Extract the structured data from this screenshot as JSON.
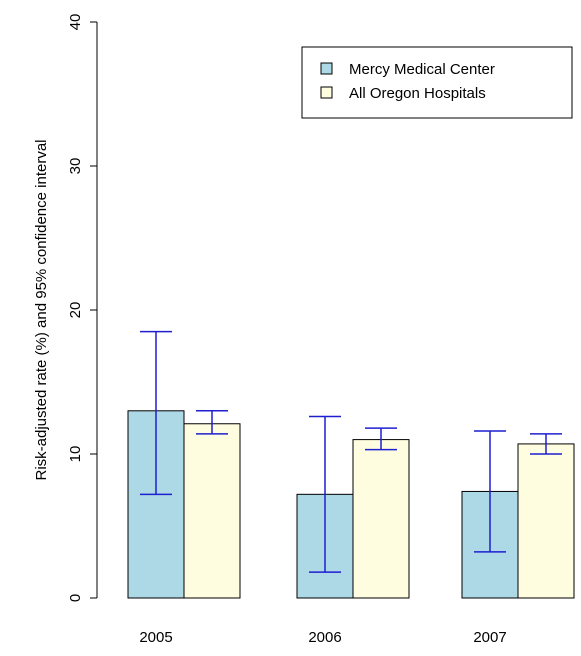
{
  "chart_data": {
    "type": "bar",
    "title": "",
    "xlabel": "",
    "ylabel": "Risk-adjusted rate (%) and 95% confidence interval",
    "ylim": [
      0,
      40
    ],
    "yticks": [
      0,
      10,
      20,
      30,
      40
    ],
    "categories": [
      "2005",
      "2006",
      "2007"
    ],
    "series": [
      {
        "name": "Mercy Medical Center",
        "color": "#add8e6",
        "values": [
          13.0,
          7.2,
          7.4
        ],
        "ci_lower": [
          7.2,
          1.8,
          3.2
        ],
        "ci_upper": [
          18.5,
          12.6,
          11.6
        ]
      },
      {
        "name": "All Oregon Hospitals",
        "color": "#fffde0",
        "values": [
          12.1,
          11.0,
          10.7
        ],
        "ci_lower": [
          11.4,
          10.3,
          10.0
        ],
        "ci_upper": [
          13.0,
          11.8,
          11.4
        ]
      }
    ],
    "error_bar_color": "#1f1fd0",
    "grid": false,
    "legend": "top-right"
  }
}
